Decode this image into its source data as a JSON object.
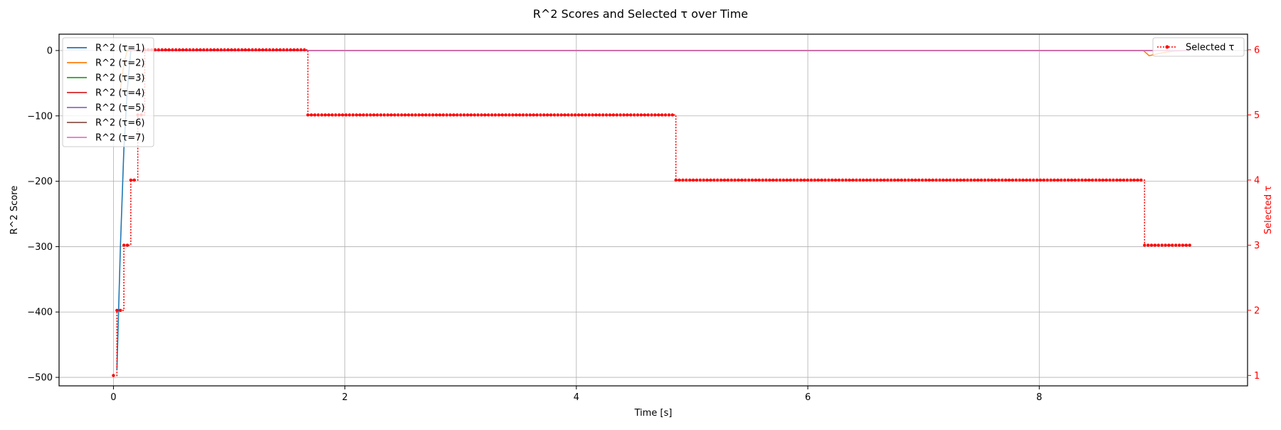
{
  "chart_data": {
    "type": "line",
    "title": "R^2 Scores and Selected τ over Time",
    "xlabel": "Time [s]",
    "ylabel": "R^2 Score",
    "y2label": "Selected τ",
    "xlim": [
      -0.47,
      9.8
    ],
    "ylim": [
      -513,
      25
    ],
    "y2lim": [
      0.84,
      6.24
    ],
    "xticks": [
      0,
      2,
      4,
      6,
      8
    ],
    "yticks": [
      0,
      -100,
      -200,
      -300,
      -400,
      -500
    ],
    "y2ticks": [
      1,
      2,
      3,
      4,
      5,
      6
    ],
    "grid": true,
    "legend_left_position": "upper-left",
    "legend_right_position": "upper-right",
    "colors": {
      "tau1": "#1f77b4",
      "tau2": "#ff7f0e",
      "tau3": "#2ca02c",
      "tau4": "#d62728",
      "tau5": "#9467bd",
      "tau6": "#8c564b",
      "tau7": "#e377c2",
      "selected": "#ff0000"
    },
    "series": [
      {
        "name": "R^2 (τ=1)",
        "color": "#1f77b4",
        "x": [
          0.03,
          0.06,
          0.09,
          0.12,
          0.15,
          9.3
        ],
        "y": [
          -488,
          -300,
          -150,
          -60,
          0,
          0
        ]
      },
      {
        "name": "R^2 (τ=2)",
        "color": "#ff7f0e",
        "x": [
          0.06,
          0.09,
          0.12,
          8.9,
          8.95,
          9.05,
          9.15,
          9.3
        ],
        "y": [
          -60,
          -20,
          0,
          0,
          -8,
          -4,
          -1,
          0
        ]
      },
      {
        "name": "R^2 (τ=3)",
        "color": "#2ca02c",
        "x": [
          0.09,
          9.3
        ],
        "y": [
          0,
          0
        ]
      },
      {
        "name": "R^2 (τ=4)",
        "color": "#d62728",
        "x": [
          0.12,
          9.3
        ],
        "y": [
          0,
          0
        ]
      },
      {
        "name": "R^2 (τ=5)",
        "color": "#9467bd",
        "x": [
          0.15,
          9.3
        ],
        "y": [
          0,
          0
        ]
      },
      {
        "name": "R^2 (τ=6)",
        "color": "#8c564b",
        "x": [
          0.18,
          9.3
        ],
        "y": [
          0,
          0
        ]
      },
      {
        "name": "R^2 (τ=7)",
        "color": "#e377c2",
        "x": [
          0.21,
          9.3
        ],
        "y": [
          0,
          0
        ]
      }
    ],
    "selected": {
      "name": "Selected τ",
      "color": "#ff0000",
      "step": 0.03,
      "x_start": 0.0,
      "x_end": 9.3,
      "segments": [
        {
          "from": 0.0,
          "to": 0.02,
          "value": 1
        },
        {
          "from": 0.03,
          "to": 0.08,
          "value": 2
        },
        {
          "from": 0.09,
          "to": 0.14,
          "value": 3
        },
        {
          "from": 0.15,
          "to": 0.2,
          "value": 4
        },
        {
          "from": 0.21,
          "to": 0.26,
          "value": 5
        },
        {
          "from": 0.27,
          "to": 1.65,
          "value": 6
        },
        {
          "from": 1.66,
          "to": 4.85,
          "value": 5
        },
        {
          "from": 4.86,
          "to": 8.9,
          "value": 4
        },
        {
          "from": 8.91,
          "to": 9.31,
          "value": 3
        }
      ]
    }
  }
}
